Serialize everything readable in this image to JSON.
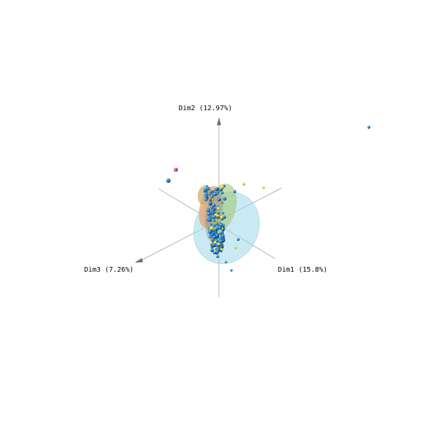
{
  "chart_data": {
    "type": "scatter",
    "projection": "3d",
    "axes": [
      {
        "name": "Dim1",
        "label": "Dim1 (15.8%)"
      },
      {
        "name": "Dim2",
        "label": "Dim2 (12.97%)"
      },
      {
        "name": "Dim3",
        "label": "Dim3 (7.26%)"
      }
    ],
    "colors": {
      "axis": "#b0b0b0",
      "arrow": "#707070",
      "blue_group": "#1f7fc0",
      "cyan_ellipse": "#9fd8ea",
      "orange_ellipse": "#e8a06a",
      "green_ellipse": "#9fc878",
      "yellow_group": "#e8d040",
      "magenta_group": "#c040a0"
    }
  }
}
